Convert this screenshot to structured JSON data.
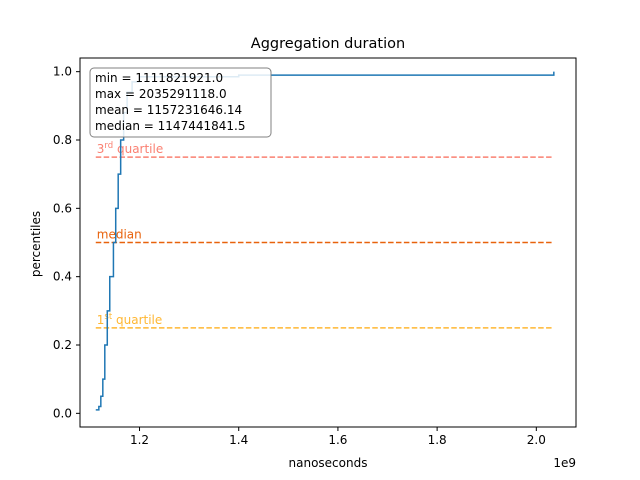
{
  "chart_data": {
    "type": "line",
    "title": "Aggregation duration",
    "xlabel": "nanoseconds",
    "ylabel": "percentiles",
    "x_offset_label": "1e9",
    "xlim": [
      1.08,
      2.08
    ],
    "ylim": [
      -0.04,
      1.04
    ],
    "xticks": [
      1.2,
      1.4,
      1.6,
      1.8,
      2.0
    ],
    "xtick_labels": [
      "1.2",
      "1.4",
      "1.6",
      "1.8",
      "2.0"
    ],
    "yticks": [
      0.0,
      0.2,
      0.4,
      0.6,
      0.8,
      1.0
    ],
    "ytick_labels": [
      "0.0",
      "0.2",
      "0.4",
      "0.6",
      "0.8",
      "1.0"
    ],
    "grid": false,
    "series": [
      {
        "color": "#1f77b4",
        "x": [
          1.1118,
          1.118,
          1.122,
          1.126,
          1.13,
          1.135,
          1.14,
          1.1474,
          1.152,
          1.157,
          1.162,
          1.168,
          1.175,
          1.185,
          1.2,
          1.4,
          1.8,
          2.0,
          2.0353,
          2.0353
        ],
        "y": [
          0.01,
          0.02,
          0.05,
          0.1,
          0.2,
          0.3,
          0.4,
          0.5,
          0.6,
          0.7,
          0.8,
          0.88,
          0.94,
          0.97,
          0.985,
          0.99,
          0.99,
          0.99,
          0.99,
          1.0
        ]
      }
    ],
    "reference_lines": [
      {
        "y": 0.75,
        "label_text": "quartile",
        "label_sup": "rd",
        "label_prefix": "3",
        "color": "#fa8072"
      },
      {
        "y": 0.5,
        "label_text": "median",
        "color": "#e8620c"
      },
      {
        "y": 0.25,
        "label_text": "quartile",
        "label_sup": "st",
        "label_prefix": "1",
        "color": "#ffb733"
      }
    ],
    "ref_line_xrange": [
      1.1118,
      2.0353
    ],
    "annotations": [
      "min = 1111821921.0",
      "max = 2035291118.0",
      "mean = 1157231646.14",
      "median = 1147441841.5"
    ]
  }
}
